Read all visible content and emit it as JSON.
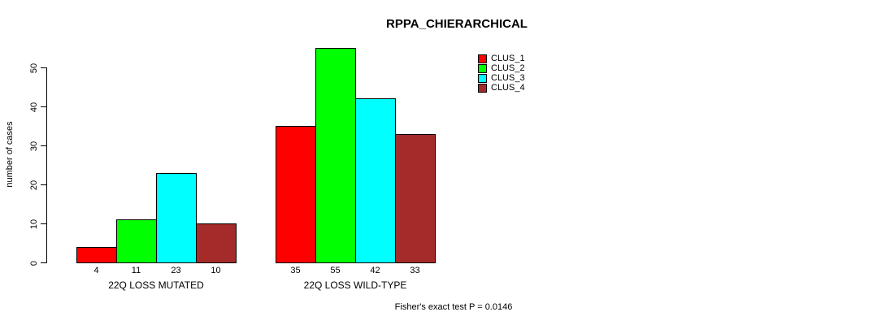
{
  "chart_data": {
    "type": "bar",
    "title": "RPPA_CHIERARCHICAL",
    "ylabel": "number of cases",
    "xlabel": "",
    "annotation": "Fisher's exact test P = 0.0146",
    "categories": [
      "22Q LOSS MUTATED",
      "22Q LOSS WILD-TYPE"
    ],
    "series": [
      {
        "name": "CLUS_1",
        "color": "#FF0000",
        "values": [
          4,
          35
        ]
      },
      {
        "name": "CLUS_2",
        "color": "#00FF00",
        "values": [
          11,
          55
        ]
      },
      {
        "name": "CLUS_3",
        "color": "#00FFFF",
        "values": [
          23,
          42
        ]
      },
      {
        "name": "CLUS_4",
        "color": "#A52A2A",
        "values": [
          10,
          33
        ]
      }
    ],
    "bar_value_labels": [
      [
        "4",
        "11",
        "23",
        "10"
      ],
      [
        "35",
        "55",
        "42",
        "33"
      ]
    ],
    "yticks": [
      0,
      10,
      20,
      30,
      40,
      50
    ],
    "ylim": [
      0,
      55
    ],
    "grid": false,
    "legend_position": "top-right",
    "colors": {
      "background": "#FFFFFF",
      "axis": "#000000",
      "text": "#000000"
    }
  }
}
